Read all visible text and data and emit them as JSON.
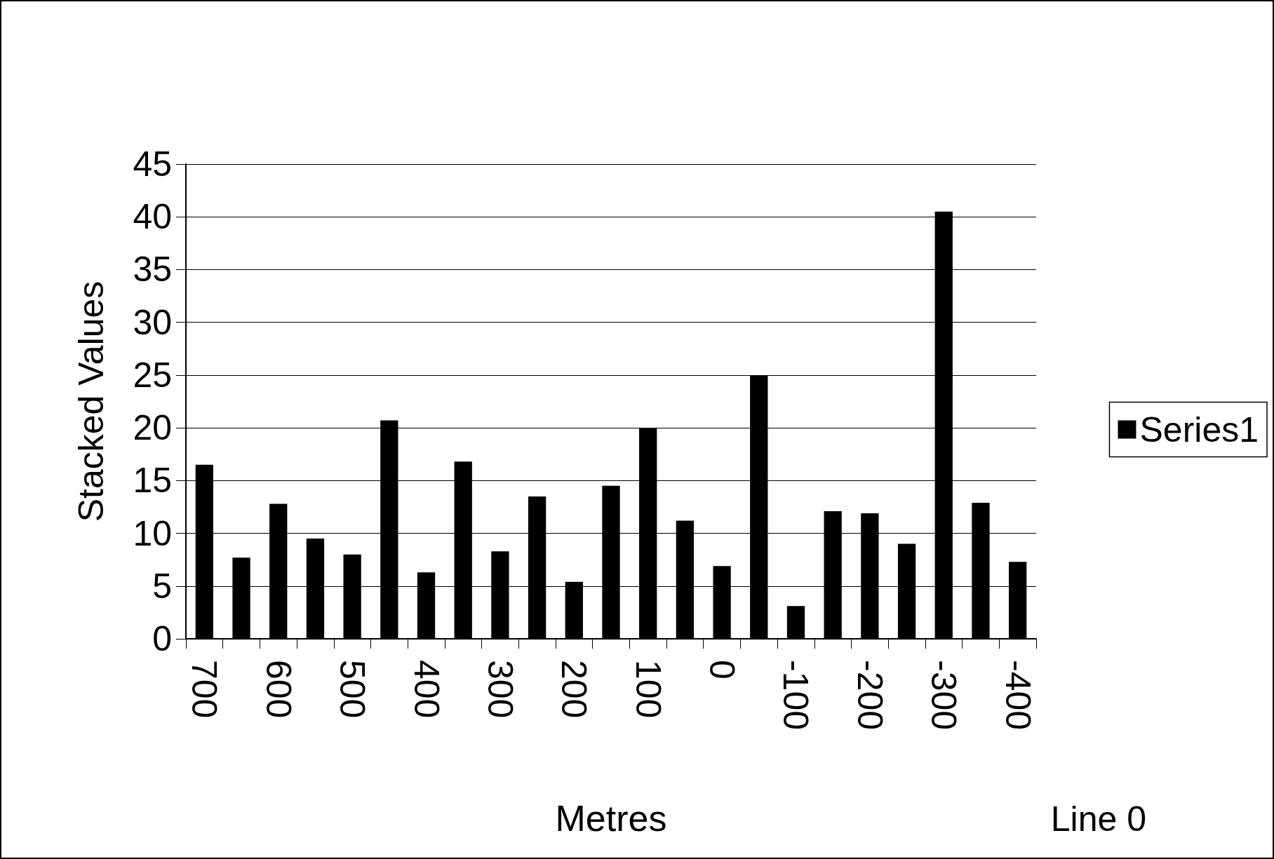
{
  "chart_data": {
    "type": "bar",
    "xlabel": "Metres",
    "ylabel": "Stacked Values",
    "categories": [
      "700",
      null,
      "600",
      null,
      "500",
      null,
      "400",
      null,
      "300",
      null,
      "200",
      null,
      "100",
      null,
      "0",
      null,
      "-100",
      null,
      "-200",
      null,
      "-300",
      null,
      "-400"
    ],
    "series": [
      {
        "name": "Series1",
        "color": "#000000",
        "values": [
          16.5,
          7.7,
          12.8,
          9.5,
          8.0,
          20.7,
          6.3,
          16.8,
          8.3,
          13.5,
          5.4,
          14.5,
          20.0,
          11.2,
          6.9,
          25.0,
          3.1,
          12.1,
          11.9,
          9.0,
          40.5,
          12.9,
          7.3
        ]
      }
    ],
    "ylim": [
      0,
      45
    ],
    "yticks": [
      0,
      5,
      10,
      15,
      20,
      25,
      30,
      35,
      40,
      45
    ],
    "grid": "y",
    "legend": "right",
    "annotations": [
      "Line 0"
    ]
  }
}
